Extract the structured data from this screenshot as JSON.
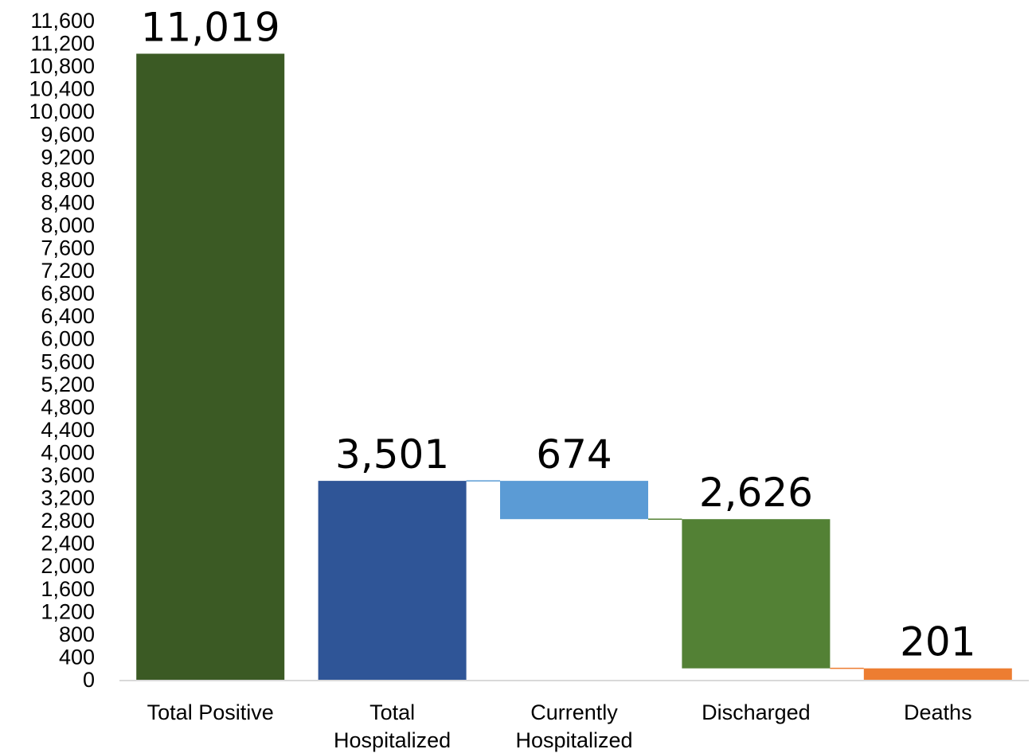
{
  "chart_data": {
    "type": "bar",
    "subtype": "waterfall",
    "categories": [
      [
        "Total Positive"
      ],
      [
        "Total",
        "Hospitalized"
      ],
      [
        "Currently",
        "Hospitalized"
      ],
      [
        "Discharged"
      ],
      [
        "Deaths"
      ]
    ],
    "bars": [
      {
        "category": "Total Positive",
        "start": 0,
        "end": 11019,
        "value": 11019,
        "label": "11,019",
        "color": "#3b5a24"
      },
      {
        "category": "Total Hospitalized",
        "start": 0,
        "end": 3501,
        "value": 3501,
        "label": "3,501",
        "color": "#2f5597"
      },
      {
        "category": "Currently Hospitalized",
        "start": 2827,
        "end": 3501,
        "value": 674,
        "label": "674",
        "color": "#5b9bd5"
      },
      {
        "category": "Discharged",
        "start": 201,
        "end": 2827,
        "value": 2626,
        "label": "2,626",
        "color": "#538135"
      },
      {
        "category": "Deaths",
        "start": 0,
        "end": 201,
        "value": 201,
        "label": "201",
        "color": "#ed7d31"
      }
    ],
    "connectors": [
      {
        "from": 1,
        "to": 2,
        "value": 3501,
        "color": "#5b9bd5"
      },
      {
        "from": 2,
        "to": 3,
        "value": 2827,
        "color": "#548235"
      },
      {
        "from": 3,
        "to": 4,
        "value": 201,
        "color": "#ed7d31"
      }
    ],
    "ylim": [
      0,
      11600
    ],
    "yticks": [
      0,
      400,
      800,
      1200,
      1600,
      2000,
      2400,
      2800,
      3200,
      3600,
      4000,
      4400,
      4800,
      5200,
      5600,
      6000,
      6400,
      6800,
      7200,
      7600,
      8000,
      8400,
      8800,
      9200,
      9600,
      10000,
      10400,
      10800,
      11200,
      11600
    ],
    "ytick_labels": [
      "0",
      "400",
      "800",
      "1,200",
      "1,600",
      "2,000",
      "2,400",
      "2,800",
      "3,200",
      "3,600",
      "4,000",
      "4,400",
      "4,800",
      "5,200",
      "5,600",
      "6,000",
      "6,400",
      "6,800",
      "7,200",
      "7,600",
      "8,000",
      "8,400",
      "8,800",
      "9,200",
      "9,600",
      "10,000",
      "10,400",
      "10,800",
      "11,200",
      "11,600"
    ],
    "title": "",
    "xlabel": "",
    "ylabel": "",
    "grid": false,
    "legend": "none",
    "axis_color": "#d9d9d9"
  }
}
